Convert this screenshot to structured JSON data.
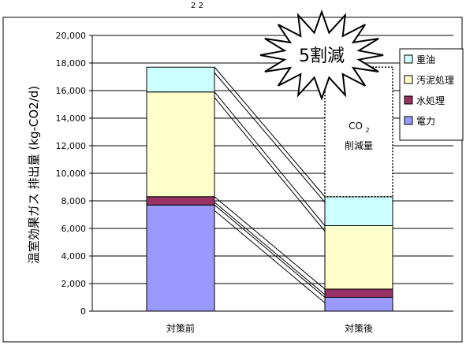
{
  "chart_data": {
    "type": "bar",
    "stacked": true,
    "title": "",
    "xlabel": "",
    "ylabel": "温室効果ガス 排出量 (kg-CO2/d)",
    "ylim": [
      0,
      20000
    ],
    "y_ticks": [
      0,
      2000,
      4000,
      6000,
      8000,
      10000,
      12000,
      14000,
      16000,
      18000,
      20000
    ],
    "y_tick_labels": [
      "0",
      "2,000",
      "4,000",
      "6,000",
      "8,000",
      "10,000",
      "12,000",
      "14,000",
      "16,000",
      "18,000",
      "20,000"
    ],
    "grid": true,
    "legend_position": "top-right",
    "categories": [
      "対策前",
      "対策後"
    ],
    "series": [
      {
        "name": "電力",
        "color": "#9999ff",
        "values": [
          7700,
          1000
        ]
      },
      {
        "name": "水処理",
        "color": "#993366",
        "values": [
          600,
          600
        ]
      },
      {
        "name": "汚泥処理",
        "color": "#ffffcc",
        "values": [
          7600,
          4600
        ]
      },
      {
        "name": "重油",
        "color": "#ccffff",
        "values": [
          1800,
          2100
        ]
      }
    ],
    "reduction_box": {
      "label_main": "CO",
      "label_sub": "2",
      "label_line2": "削減量"
    },
    "annotation": "5割減",
    "top_caption": "2 2"
  }
}
